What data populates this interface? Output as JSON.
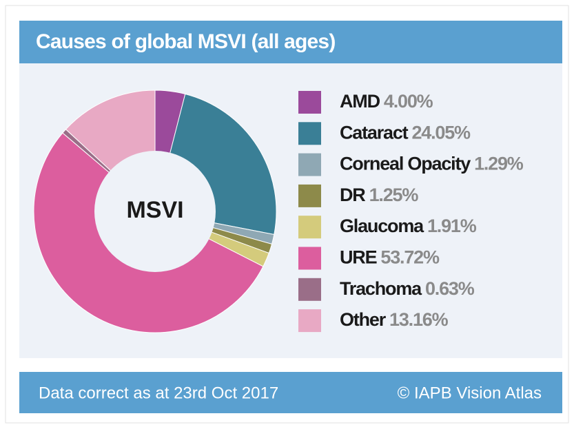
{
  "chart_data": {
    "type": "pie",
    "title": "Causes of global MSVI (all ages)",
    "center_label": "MSVI",
    "categories": [
      "AMD",
      "Cataract",
      "Corneal Opacity",
      "DR",
      "Glaucoma",
      "URE",
      "Trachoma",
      "Other"
    ],
    "values": [
      4.0,
      24.05,
      1.29,
      1.25,
      1.91,
      53.72,
      0.63,
      13.16
    ],
    "value_labels": [
      "4.00%",
      "24.05%",
      "1.29%",
      "1.25%",
      "1.91%",
      "53.72%",
      "0.63%",
      "13.16%"
    ],
    "colors": [
      "#9b4a9b",
      "#3a7f96",
      "#8fa8b4",
      "#8d8a4a",
      "#d4cb7c",
      "#dc5e9e",
      "#9a6e88",
      "#e8a9c4"
    ],
    "footnote": "Data correct as at 23rd Oct 2017",
    "credit": "© IAPB Vision Atlas"
  }
}
